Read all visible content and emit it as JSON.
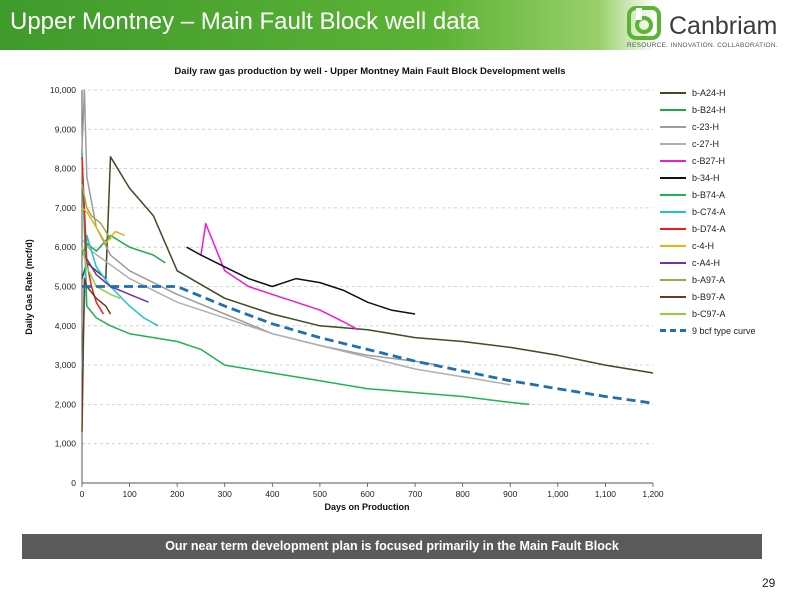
{
  "slide": {
    "title": "Upper Montney – Main Fault Block well data",
    "page_number": "29",
    "footer": "Our near term development plan is focused primarily in the Main Fault Block"
  },
  "logo": {
    "name": "Canbriam",
    "tagline": "RESOURCE. INNOVATION. COLLABORATION.",
    "icon": "canbriam-logo-icon",
    "color": "#5cb336"
  },
  "chart_data": {
    "type": "line",
    "title": "Daily raw gas production by well - Upper Montney Main Fault Block Development wells",
    "xlabel": "Days on Production",
    "ylabel": "Daily Gas Rate (mcf/d)",
    "xlim": [
      0,
      1200
    ],
    "ylim": [
      0,
      10000
    ],
    "x_ticks": [
      0,
      100,
      200,
      300,
      400,
      500,
      600,
      700,
      800,
      900,
      1000,
      1100,
      1200
    ],
    "x_tick_labels": [
      "0",
      "100",
      "200",
      "300",
      "400",
      "500",
      "600",
      "700",
      "800",
      "900",
      "1,000",
      "1,100",
      "1,200"
    ],
    "y_ticks": [
      0,
      1000,
      2000,
      3000,
      4000,
      5000,
      6000,
      7000,
      8000,
      9000,
      10000
    ],
    "y_tick_labels": [
      "0",
      "1,000",
      "2,000",
      "3,000",
      "4,000",
      "5,000",
      "6,000",
      "7,000",
      "8,000",
      "9,000",
      "10,000"
    ],
    "grid": "horizontal dashed",
    "legend": "right",
    "series": [
      {
        "name": "b-A24-H",
        "color": "#3b4d23",
        "x": [
          0,
          10,
          30,
          50,
          60,
          100,
          150,
          200,
          300,
          400,
          500,
          600,
          700,
          800,
          900,
          1000,
          1100,
          1200
        ],
        "y": [
          5200,
          5600,
          5400,
          5200,
          8300,
          7500,
          6800,
          5400,
          4700,
          4300,
          4000,
          3900,
          3700,
          3600,
          3450,
          3250,
          3000,
          2800
        ]
      },
      {
        "name": "b-B24-H",
        "color": "#1fa84a",
        "x": [
          0,
          10,
          30,
          60,
          100,
          150,
          175
        ],
        "y": [
          5800,
          6100,
          5900,
          6300,
          6000,
          5800,
          5600
        ]
      },
      {
        "name": "c-23-H",
        "color": "#9c9c9c",
        "x": [
          0,
          5,
          10,
          30,
          60,
          100,
          200,
          300,
          400,
          500,
          600,
          700,
          750
        ],
        "y": [
          8500,
          10000,
          7800,
          6500,
          5800,
          5400,
          4800,
          4300,
          3800,
          3500,
          3250,
          3100,
          3000
        ]
      },
      {
        "name": "c-27-H",
        "color": "#b0b0b0",
        "x": [
          0,
          20,
          100,
          200,
          300,
          400,
          500,
          600,
          700,
          800,
          850,
          900
        ],
        "y": [
          6200,
          5900,
          5200,
          4600,
          4200,
          3800,
          3500,
          3200,
          2900,
          2700,
          2600,
          2500
        ]
      },
      {
        "name": "c-B27-H",
        "color": "#f019d8",
        "x": [
          250,
          260,
          300,
          350,
          400,
          450,
          500,
          550,
          580
        ],
        "y": [
          5800,
          6600,
          5400,
          5000,
          4800,
          4600,
          4400,
          4100,
          3900
        ]
      },
      {
        "name": "b-34-H",
        "color": "#111111",
        "x": [
          220,
          250,
          300,
          350,
          400,
          450,
          500,
          550,
          600,
          650,
          700
        ],
        "y": [
          6000,
          5800,
          5500,
          5200,
          5000,
          5200,
          5100,
          4900,
          4600,
          4400,
          4300
        ]
      },
      {
        "name": "b-B74-A",
        "color": "#1fb356",
        "x": [
          0,
          10,
          30,
          60,
          100,
          150,
          200,
          250,
          300,
          400,
          500,
          600,
          700,
          800,
          900,
          940
        ],
        "y": [
          8400,
          4500,
          4200,
          4000,
          3800,
          3700,
          3600,
          3400,
          3000,
          2800,
          2600,
          2400,
          2300,
          2200,
          2050,
          2000
        ]
      },
      {
        "name": "b-C74-A",
        "color": "#1ec2d6",
        "x": [
          0,
          10,
          30,
          60,
          100,
          130,
          160
        ],
        "y": [
          2800,
          6300,
          5500,
          5000,
          4500,
          4200,
          4000
        ]
      },
      {
        "name": "b-D74-A",
        "color": "#ee1c1c",
        "x": [
          0,
          5,
          10,
          20,
          30,
          45
        ],
        "y": [
          8300,
          7000,
          5600,
          5000,
          4600,
          4300
        ]
      },
      {
        "name": "c-4-H",
        "color": "#e6b412",
        "x": [
          0,
          10,
          30,
          50,
          70,
          90
        ],
        "y": [
          7000,
          6900,
          6500,
          6100,
          6400,
          6300
        ]
      },
      {
        "name": "c-A4-H",
        "color": "#6b33b0",
        "x": [
          0,
          10,
          30,
          60,
          100,
          140
        ],
        "y": [
          5900,
          5700,
          5300,
          5000,
          4800,
          4600
        ]
      },
      {
        "name": "b-A97-A",
        "color": "#9aa84a",
        "x": [
          0,
          10,
          20,
          40,
          60
        ],
        "y": [
          7600,
          7000,
          6800,
          6600,
          6200
        ]
      },
      {
        "name": "b-B97-A",
        "color": "#6b3b1a",
        "x": [
          0,
          5,
          10,
          30,
          50,
          60
        ],
        "y": [
          1300,
          5200,
          5000,
          4700,
          4500,
          4300
        ]
      },
      {
        "name": "b-C97-A",
        "color": "#8fd13a",
        "x": [
          0,
          10,
          30,
          60,
          80
        ],
        "y": [
          6000,
          5500,
          5000,
          4800,
          4700
        ]
      },
      {
        "name": "9 bcf type curve",
        "color": "#1f6fb3",
        "dashed": true,
        "x": [
          0,
          100,
          200,
          300,
          400,
          500,
          600,
          700,
          800,
          900,
          1000,
          1100,
          1200
        ],
        "y": [
          5000,
          5000,
          5000,
          4500,
          4050,
          3700,
          3400,
          3100,
          2850,
          2600,
          2400,
          2200,
          2030
        ]
      }
    ]
  }
}
